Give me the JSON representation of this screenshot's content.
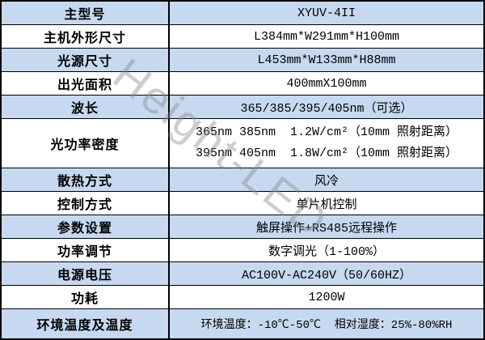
{
  "watermark": {
    "text": "Height-LED",
    "color": "#8a8a8a"
  },
  "colors": {
    "shaded_row": "#c6d9f0",
    "border": "#000000",
    "text": "#000000"
  },
  "rows": [
    {
      "label": "主型号",
      "value": "XYUV-4II",
      "shaded": true
    },
    {
      "label": "主机外形尺寸",
      "value": "L384mm*W291mm*H100mm",
      "shaded": false
    },
    {
      "label": "光源尺寸",
      "value": "L453mm*W133mm*H88mm",
      "shaded": true
    },
    {
      "label": "出光面积",
      "value": "400mmX100mm",
      "shaded": false
    },
    {
      "label": "波长",
      "value": "365/385/395/405nm（可选）",
      "shaded": true
    },
    {
      "label": "光功率密度",
      "value_lines": [
        "365nm 385nm  1.2W/cm²（10mm 照射距离）",
        "395nm 405nm  1.8W/cm²（10mm 照射距离）"
      ],
      "shaded": false
    },
    {
      "label": "散热方式",
      "value": "风冷",
      "shaded": true
    },
    {
      "label": "控制方式",
      "value": "单片机控制",
      "shaded": false
    },
    {
      "label": "参数设置",
      "value": "触屏操作+RS485远程操作",
      "shaded": true
    },
    {
      "label": "功率调节",
      "value": "数字调光（1-100%）",
      "shaded": false
    },
    {
      "label": "电源电压",
      "value": "AC100V-AC240V（50/60HZ）",
      "shaded": true
    },
    {
      "label": "功耗",
      "value": "1200W",
      "shaded": false
    },
    {
      "label": "环境温度及温度",
      "value": "环境温度：-10℃-50℃  相对湿度：25%-80%RH",
      "shaded": true
    }
  ]
}
